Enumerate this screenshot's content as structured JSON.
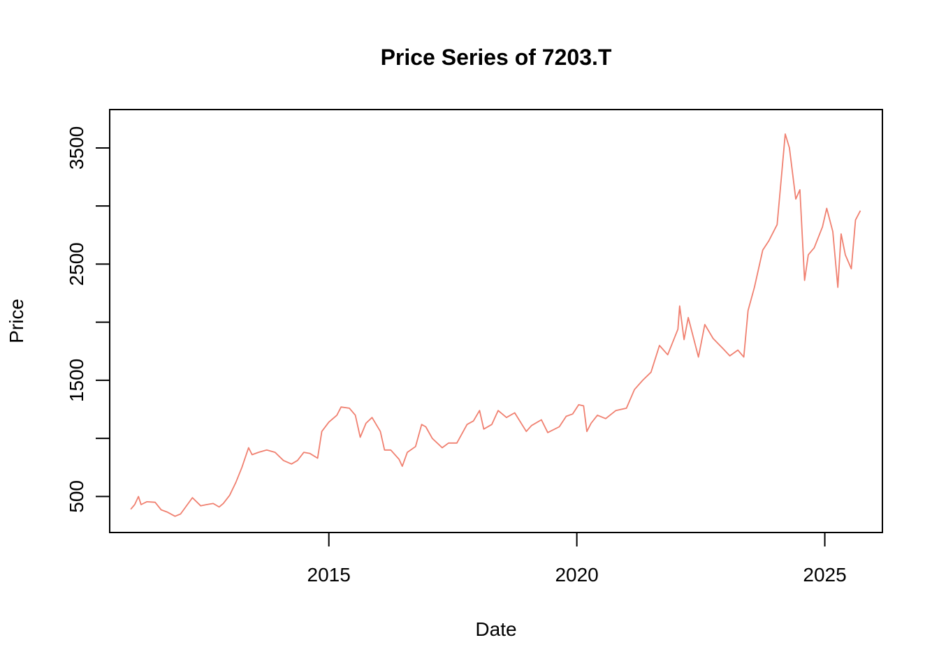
{
  "chart_data": {
    "type": "line",
    "title": "Price Series of 7203.T",
    "xlabel": "Date",
    "ylabel": "Price",
    "x_ticks": [
      "2015",
      "2020",
      "2025"
    ],
    "y_ticks": [
      "500",
      "1500",
      "2500",
      "3500"
    ],
    "xlim": [
      "2010-08-01",
      "2026-03-01"
    ],
    "ylim": [
      190,
      3830
    ],
    "grid": false,
    "legend": "none",
    "line_color": "#F08070",
    "series": [
      {
        "points": [
          [
            "2011-01-03",
            390
          ],
          [
            "2011-02-01",
            430
          ],
          [
            "2011-03-01",
            500
          ],
          [
            "2011-03-20",
            430
          ],
          [
            "2011-05-01",
            455
          ],
          [
            "2011-07-01",
            450
          ],
          [
            "2011-08-15",
            385
          ],
          [
            "2011-10-01",
            365
          ],
          [
            "2011-11-25",
            330
          ],
          [
            "2012-01-05",
            350
          ],
          [
            "2012-03-01",
            440
          ],
          [
            "2012-04-01",
            490
          ],
          [
            "2012-06-01",
            420
          ],
          [
            "2012-07-15",
            430
          ],
          [
            "2012-09-01",
            440
          ],
          [
            "2012-10-15",
            410
          ],
          [
            "2012-11-15",
            440
          ],
          [
            "2013-01-01",
            510
          ],
          [
            "2013-02-15",
            620
          ],
          [
            "2013-04-01",
            750
          ],
          [
            "2013-05-20",
            920
          ],
          [
            "2013-06-15",
            860
          ],
          [
            "2013-08-01",
            880
          ],
          [
            "2013-10-01",
            900
          ],
          [
            "2013-12-01",
            880
          ],
          [
            "2014-02-01",
            810
          ],
          [
            "2014-04-01",
            780
          ],
          [
            "2014-05-15",
            810
          ],
          [
            "2014-07-01",
            880
          ],
          [
            "2014-08-15",
            870
          ],
          [
            "2014-10-10",
            830
          ],
          [
            "2014-11-10",
            1060
          ],
          [
            "2015-01-01",
            1140
          ],
          [
            "2015-03-01",
            1200
          ],
          [
            "2015-04-01",
            1270
          ],
          [
            "2015-06-01",
            1260
          ],
          [
            "2015-07-15",
            1200
          ],
          [
            "2015-08-20",
            1010
          ],
          [
            "2015-10-01",
            1130
          ],
          [
            "2015-11-15",
            1180
          ],
          [
            "2016-01-15",
            1060
          ],
          [
            "2016-02-15",
            900
          ],
          [
            "2016-04-01",
            900
          ],
          [
            "2016-06-01",
            820
          ],
          [
            "2016-06-25",
            760
          ],
          [
            "2016-08-01",
            880
          ],
          [
            "2016-10-01",
            930
          ],
          [
            "2016-11-15",
            1120
          ],
          [
            "2016-12-15",
            1100
          ],
          [
            "2017-02-01",
            1000
          ],
          [
            "2017-04-15",
            920
          ],
          [
            "2017-06-01",
            960
          ],
          [
            "2017-08-01",
            960
          ],
          [
            "2017-10-15",
            1120
          ],
          [
            "2017-12-01",
            1150
          ],
          [
            "2018-01-15",
            1240
          ],
          [
            "2018-02-15",
            1080
          ],
          [
            "2018-04-15",
            1120
          ],
          [
            "2018-06-01",
            1240
          ],
          [
            "2018-08-01",
            1180
          ],
          [
            "2018-10-01",
            1220
          ],
          [
            "2018-12-25",
            1060
          ],
          [
            "2019-02-01",
            1110
          ],
          [
            "2019-04-15",
            1160
          ],
          [
            "2019-06-01",
            1050
          ],
          [
            "2019-08-25",
            1100
          ],
          [
            "2019-10-15",
            1190
          ],
          [
            "2019-12-01",
            1210
          ],
          [
            "2020-01-15",
            1290
          ],
          [
            "2020-02-20",
            1280
          ],
          [
            "2020-03-15",
            1060
          ],
          [
            "2020-04-15",
            1130
          ],
          [
            "2020-06-01",
            1200
          ],
          [
            "2020-08-01",
            1170
          ],
          [
            "2020-10-15",
            1240
          ],
          [
            "2021-01-01",
            1260
          ],
          [
            "2021-03-01",
            1420
          ],
          [
            "2021-05-01",
            1500
          ],
          [
            "2021-07-01",
            1570
          ],
          [
            "2021-09-01",
            1800
          ],
          [
            "2021-11-01",
            1720
          ],
          [
            "2022-01-15",
            1940
          ],
          [
            "2022-01-28",
            2140
          ],
          [
            "2022-03-01",
            1850
          ],
          [
            "2022-04-01",
            2040
          ],
          [
            "2022-06-15",
            1700
          ],
          [
            "2022-08-01",
            1980
          ],
          [
            "2022-10-01",
            1860
          ],
          [
            "2022-12-15",
            1770
          ],
          [
            "2023-02-01",
            1710
          ],
          [
            "2023-04-01",
            1760
          ],
          [
            "2023-05-15",
            1700
          ],
          [
            "2023-06-15",
            2100
          ],
          [
            "2023-08-01",
            2300
          ],
          [
            "2023-10-01",
            2620
          ],
          [
            "2023-11-15",
            2700
          ],
          [
            "2024-01-15",
            2840
          ],
          [
            "2024-02-15",
            3240
          ],
          [
            "2024-03-15",
            3620
          ],
          [
            "2024-04-15",
            3500
          ],
          [
            "2024-06-01",
            3060
          ],
          [
            "2024-07-01",
            3140
          ],
          [
            "2024-08-05",
            2360
          ],
          [
            "2024-09-01",
            2580
          ],
          [
            "2024-10-15",
            2640
          ],
          [
            "2024-12-15",
            2820
          ],
          [
            "2025-01-15",
            2980
          ],
          [
            "2025-03-01",
            2780
          ],
          [
            "2025-04-07",
            2300
          ],
          [
            "2025-05-01",
            2760
          ],
          [
            "2025-06-01",
            2580
          ],
          [
            "2025-07-15",
            2460
          ],
          [
            "2025-08-15",
            2880
          ],
          [
            "2025-09-20",
            2960
          ]
        ]
      }
    ]
  }
}
